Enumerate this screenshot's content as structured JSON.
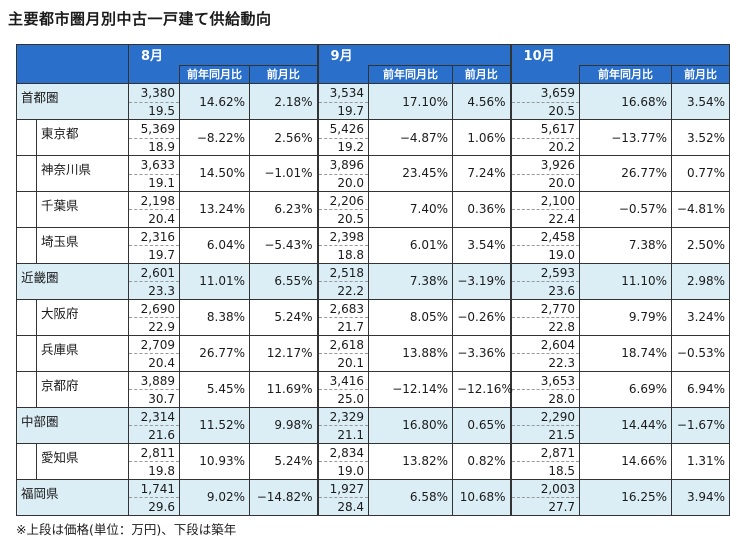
{
  "title": "主要都市圏月別中古一戸建て供給動向",
  "footnote": "※上段は価格(単位：万円)、下段は築年",
  "months": [
    "8月",
    "9月",
    "10月"
  ],
  "sub_headers": {
    "yoy": "前年同月比",
    "mom": "前月比"
  },
  "rows": [
    {
      "label": "首都圏",
      "region": true,
      "m": [
        {
          "price": "3,380",
          "age": "19.5",
          "yoy": "14.62%",
          "mom": "2.18%"
        },
        {
          "price": "3,534",
          "age": "19.7",
          "yoy": "17.10%",
          "mom": "4.56%"
        },
        {
          "price": "3,659",
          "age": "20.5",
          "yoy": "16.68%",
          "mom": "3.54%"
        }
      ]
    },
    {
      "label": "東京都",
      "region": false,
      "m": [
        {
          "price": "5,369",
          "age": "18.9",
          "yoy": "−8.22%",
          "mom": "2.56%"
        },
        {
          "price": "5,426",
          "age": "19.2",
          "yoy": "−4.87%",
          "mom": "1.06%"
        },
        {
          "price": "5,617",
          "age": "20.2",
          "yoy": "−13.77%",
          "mom": "3.52%"
        }
      ]
    },
    {
      "label": "神奈川県",
      "region": false,
      "m": [
        {
          "price": "3,633",
          "age": "19.1",
          "yoy": "14.50%",
          "mom": "−1.01%"
        },
        {
          "price": "3,896",
          "age": "20.0",
          "yoy": "23.45%",
          "mom": "7.24%"
        },
        {
          "price": "3,926",
          "age": "20.0",
          "yoy": "26.77%",
          "mom": "0.77%"
        }
      ]
    },
    {
      "label": "千葉県",
      "region": false,
      "m": [
        {
          "price": "2,198",
          "age": "20.4",
          "yoy": "13.24%",
          "mom": "6.23%"
        },
        {
          "price": "2,206",
          "age": "20.5",
          "yoy": "7.40%",
          "mom": "0.36%"
        },
        {
          "price": "2,100",
          "age": "22.4",
          "yoy": "−0.57%",
          "mom": "−4.81%"
        }
      ]
    },
    {
      "label": "埼玉県",
      "region": false,
      "m": [
        {
          "price": "2,316",
          "age": "19.7",
          "yoy": "6.04%",
          "mom": "−5.43%"
        },
        {
          "price": "2,398",
          "age": "18.8",
          "yoy": "6.01%",
          "mom": "3.54%"
        },
        {
          "price": "2,458",
          "age": "19.0",
          "yoy": "7.38%",
          "mom": "2.50%"
        }
      ]
    },
    {
      "label": "近畿圏",
      "region": true,
      "m": [
        {
          "price": "2,601",
          "age": "23.3",
          "yoy": "11.01%",
          "mom": "6.55%"
        },
        {
          "price": "2,518",
          "age": "22.2",
          "yoy": "7.38%",
          "mom": "−3.19%"
        },
        {
          "price": "2,593",
          "age": "23.6",
          "yoy": "11.10%",
          "mom": "2.98%"
        }
      ]
    },
    {
      "label": "大阪府",
      "region": false,
      "m": [
        {
          "price": "2,690",
          "age": "22.9",
          "yoy": "8.38%",
          "mom": "5.24%"
        },
        {
          "price": "2,683",
          "age": "21.7",
          "yoy": "8.05%",
          "mom": "−0.26%"
        },
        {
          "price": "2,770",
          "age": "22.8",
          "yoy": "9.79%",
          "mom": "3.24%"
        }
      ]
    },
    {
      "label": "兵庫県",
      "region": false,
      "m": [
        {
          "price": "2,709",
          "age": "20.4",
          "yoy": "26.77%",
          "mom": "12.17%"
        },
        {
          "price": "2,618",
          "age": "20.1",
          "yoy": "13.88%",
          "mom": "−3.36%"
        },
        {
          "price": "2,604",
          "age": "22.3",
          "yoy": "18.74%",
          "mom": "−0.53%"
        }
      ]
    },
    {
      "label": "京都府",
      "region": false,
      "m": [
        {
          "price": "3,889",
          "age": "30.7",
          "yoy": "5.45%",
          "mom": "11.69%"
        },
        {
          "price": "3,416",
          "age": "25.0",
          "yoy": "−12.14%",
          "mom": "−12.16%"
        },
        {
          "price": "3,653",
          "age": "28.0",
          "yoy": "6.69%",
          "mom": "6.94%"
        }
      ]
    },
    {
      "label": "中部圏",
      "region": true,
      "m": [
        {
          "price": "2,314",
          "age": "21.6",
          "yoy": "11.52%",
          "mom": "9.98%"
        },
        {
          "price": "2,329",
          "age": "21.1",
          "yoy": "16.80%",
          "mom": "0.65%"
        },
        {
          "price": "2,290",
          "age": "21.5",
          "yoy": "14.44%",
          "mom": "−1.67%"
        }
      ]
    },
    {
      "label": "愛知県",
      "region": false,
      "m": [
        {
          "price": "2,811",
          "age": "19.8",
          "yoy": "10.93%",
          "mom": "5.24%"
        },
        {
          "price": "2,834",
          "age": "19.0",
          "yoy": "13.82%",
          "mom": "0.82%"
        },
        {
          "price": "2,871",
          "age": "18.5",
          "yoy": "14.66%",
          "mom": "1.31%"
        }
      ]
    },
    {
      "label": "福岡県",
      "region": true,
      "m": [
        {
          "price": "1,741",
          "age": "29.6",
          "yoy": "9.02%",
          "mom": "−14.82%"
        },
        {
          "price": "1,927",
          "age": "28.4",
          "yoy": "6.58%",
          "mom": "10.68%"
        },
        {
          "price": "2,003",
          "age": "27.7",
          "yoy": "16.25%",
          "mom": "3.94%"
        }
      ]
    }
  ]
}
